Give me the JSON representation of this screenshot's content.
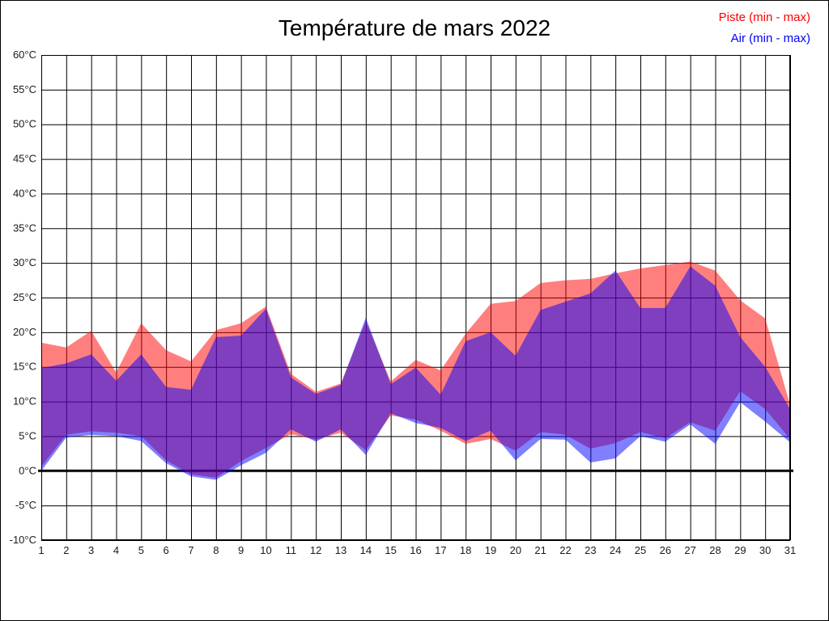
{
  "title": "Température de mars 2022",
  "legend": {
    "piste_label": "Piste (min - max)",
    "air_label": "Air (min - max)"
  },
  "colors": {
    "piste": "#ff0000",
    "air": "#0000ff",
    "fill_opacity": 0.5,
    "grid": "#000000",
    "background": "#ffffff",
    "tick_text": "#1a1a1a"
  },
  "chart_data": {
    "type": "area",
    "title": "Température de mars 2022",
    "xlabel": "",
    "ylabel": "",
    "x": [
      1,
      2,
      3,
      4,
      5,
      6,
      7,
      8,
      9,
      10,
      11,
      12,
      13,
      14,
      15,
      16,
      17,
      18,
      19,
      20,
      21,
      22,
      23,
      24,
      25,
      26,
      27,
      28,
      29,
      30,
      31
    ],
    "ylim": [
      -10,
      60
    ],
    "ytick_step": 5,
    "ytick_suffix": "°C",
    "grid": true,
    "zero_line": true,
    "legend_position": "top-right",
    "series": [
      {
        "name": "Piste (min - max)",
        "color": "#ff0000",
        "min": [
          0.6,
          5.2,
          5.7,
          5.5,
          5.0,
          1.5,
          -0.5,
          -1.0,
          1.4,
          3.3,
          5.3,
          4.5,
          5.5,
          3.0,
          8.0,
          7.4,
          5.8,
          3.9,
          4.6,
          2.9,
          5.6,
          5.2,
          3.2,
          4.0,
          5.6,
          4.7,
          7.0,
          5.8,
          11.5,
          8.9,
          4.6
        ],
        "max": [
          18.5,
          17.8,
          20.2,
          14.2,
          21.3,
          17.4,
          15.8,
          20.3,
          21.3,
          23.7,
          14.0,
          11.4,
          12.6,
          21.6,
          12.9,
          16.0,
          14.5,
          19.8,
          24.1,
          24.5,
          27.1,
          27.5,
          27.7,
          28.5,
          29.2,
          29.7,
          30.2,
          28.9,
          24.6,
          22.0,
          9.5
        ]
      },
      {
        "name": "Air (min - max)",
        "color": "#0000ff",
        "min": [
          0.0,
          4.8,
          5.2,
          5.0,
          4.3,
          1.1,
          -0.8,
          -1.3,
          0.8,
          2.6,
          6.0,
          4.2,
          6.0,
          2.3,
          8.3,
          6.9,
          6.2,
          4.3,
          5.8,
          1.5,
          4.6,
          4.5,
          1.2,
          1.8,
          5.0,
          4.2,
          6.7,
          3.9,
          9.9,
          7.1,
          4.1
        ],
        "max": [
          14.8,
          15.5,
          16.8,
          13.0,
          16.8,
          12.1,
          11.7,
          19.3,
          19.5,
          23.4,
          13.5,
          11.1,
          12.4,
          22.1,
          12.5,
          14.9,
          11.0,
          18.7,
          20.0,
          16.6,
          23.2,
          24.4,
          25.6,
          28.9,
          23.5,
          23.5,
          29.5,
          26.7,
          19.3,
          15.0,
          8.9
        ]
      }
    ]
  }
}
